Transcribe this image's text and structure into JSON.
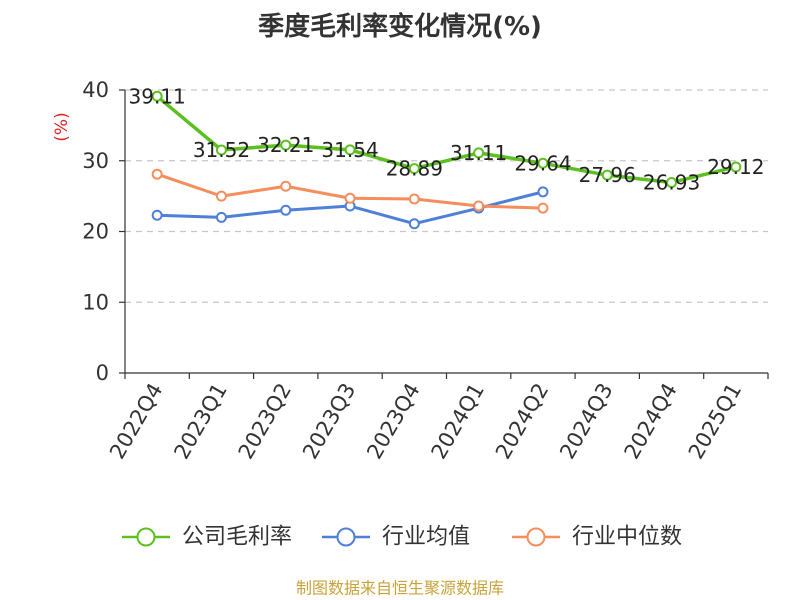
{
  "chart_data": {
    "type": "line",
    "title": "季度毛利率变化情况(%)",
    "xlabel": "",
    "ylabel": "(%)",
    "ylabel_color": "#E02424",
    "categories": [
      "2022Q4",
      "2023Q1",
      "2023Q2",
      "2023Q3",
      "2023Q4",
      "2024Q1",
      "2024Q2",
      "2024Q3",
      "2024Q4",
      "2025Q1"
    ],
    "ylim": [
      0,
      40
    ],
    "yticks": [
      0,
      10,
      20,
      30,
      40
    ],
    "grid": true,
    "legend": "bottom",
    "series": [
      {
        "name": "公司毛利率",
        "color": "#5CC020",
        "data_labels": true,
        "values": [
          39.11,
          31.52,
          32.21,
          31.54,
          28.89,
          31.11,
          29.64,
          27.96,
          26.93,
          29.12
        ]
      },
      {
        "name": "行业均值",
        "color": "#4E7FD9",
        "data_labels": false,
        "values": [
          22.3,
          22.0,
          23.0,
          23.6,
          21.1,
          23.3,
          25.6,
          null,
          null,
          null
        ]
      },
      {
        "name": "行业中位数",
        "color": "#F58D5C",
        "data_labels": false,
        "values": [
          28.1,
          25.0,
          26.4,
          24.7,
          24.6,
          23.6,
          23.3,
          null,
          null,
          null
        ]
      }
    ]
  },
  "footer": {
    "source": "制图数据来自恒生聚源数据库",
    "color": "#C8A23A"
  }
}
